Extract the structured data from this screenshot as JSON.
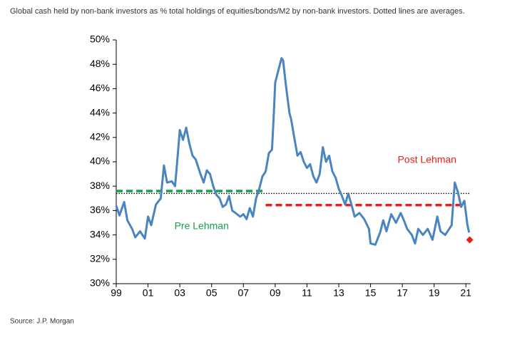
{
  "chart_data": {
    "type": "line",
    "title": "Global cash held by non-bank investors as % total holdings of equities/bonds/M2 by non-bank investors. Dotted lines are averages.",
    "source": "Source: J.P. Morgan",
    "xlim": [
      1999,
      2021.3
    ],
    "xticks": [
      {
        "value": 1999,
        "label": "99"
      },
      {
        "value": 2001,
        "label": "01"
      },
      {
        "value": 2003,
        "label": "03"
      },
      {
        "value": 2005,
        "label": "05"
      },
      {
        "value": 2007,
        "label": "07"
      },
      {
        "value": 2009,
        "label": "09"
      },
      {
        "value": 2011,
        "label": "11"
      },
      {
        "value": 2013,
        "label": "13"
      },
      {
        "value": 2015,
        "label": "15"
      },
      {
        "value": 2017,
        "label": "17"
      },
      {
        "value": 2019,
        "label": "19"
      },
      {
        "value": 2021,
        "label": "21"
      }
    ],
    "ylim": [
      30,
      50
    ],
    "yticks": [
      {
        "value": 30,
        "label": "30%"
      },
      {
        "value": 32,
        "label": "32%"
      },
      {
        "value": 34,
        "label": "34%"
      },
      {
        "value": 36,
        "label": "36%"
      },
      {
        "value": 38,
        "label": "38%"
      },
      {
        "value": 40,
        "label": "40%"
      },
      {
        "value": 42,
        "label": "42%"
      },
      {
        "value": 44,
        "label": "44%"
      },
      {
        "value": 46,
        "label": "46%"
      },
      {
        "value": 48,
        "label": "48%"
      },
      {
        "value": 50,
        "label": "50%"
      }
    ],
    "grid": false,
    "series": [
      {
        "color": "#4a85c0",
        "x": [
          1999.0,
          1999.2,
          1999.5,
          1999.7,
          2000.0,
          2000.2,
          2000.5,
          2000.8,
          2001.0,
          2001.2,
          2001.5,
          2001.8,
          2002.0,
          2002.2,
          2002.5,
          2002.7,
          2002.9,
          2003.0,
          2003.2,
          2003.4,
          2003.6,
          2003.8,
          2004.0,
          2004.3,
          2004.5,
          2004.7,
          2004.9,
          2005.1,
          2005.3,
          2005.5,
          2005.7,
          2005.9,
          2006.1,
          2006.3,
          2006.5,
          2006.8,
          2007.0,
          2007.2,
          2007.4,
          2007.6,
          2007.8,
          2008.0,
          2008.2,
          2008.4,
          2008.6,
          2008.8,
          2008.9,
          2009.0,
          2009.2,
          2009.4,
          2009.5,
          2009.7,
          2009.9,
          2010.0,
          2010.2,
          2010.4,
          2010.6,
          2010.8,
          2011.0,
          2011.2,
          2011.4,
          2011.6,
          2011.8,
          2012.0,
          2012.2,
          2012.4,
          2012.6,
          2012.8,
          2013.0,
          2013.2,
          2013.4,
          2013.6,
          2013.8,
          2014.0,
          2014.3,
          2014.6,
          2014.9,
          2015.0,
          2015.3,
          2015.6,
          2015.8,
          2016.0,
          2016.3,
          2016.6,
          2016.9,
          2017.1,
          2017.3,
          2017.6,
          2017.8,
          2018.0,
          2018.3,
          2018.6,
          2018.9,
          2019.2,
          2019.4,
          2019.7,
          2019.9,
          2020.1,
          2020.3,
          2020.5,
          2020.7,
          2020.9,
          2021.0,
          2021.1,
          2021.2
        ],
        "values": [
          36.4,
          35.6,
          36.7,
          35.2,
          34.5,
          33.8,
          34.3,
          33.7,
          35.5,
          34.8,
          36.5,
          37.0,
          39.7,
          38.3,
          38.4,
          38.0,
          41.0,
          42.6,
          41.8,
          42.8,
          41.5,
          40.5,
          40.2,
          39.0,
          38.3,
          39.3,
          39.0,
          38.0,
          37.3,
          37.0,
          36.3,
          36.5,
          37.2,
          36.0,
          35.8,
          35.5,
          35.7,
          35.3,
          36.2,
          35.5,
          37.0,
          37.8,
          38.8,
          39.2,
          40.7,
          41.0,
          43.5,
          46.5,
          47.5,
          48.5,
          48.3,
          46.0,
          44.0,
          43.5,
          42.0,
          40.5,
          40.8,
          40.0,
          39.5,
          39.8,
          38.8,
          38.3,
          39.0,
          41.2,
          40.0,
          40.5,
          39.2,
          38.7,
          37.8,
          37.2,
          36.5,
          37.4,
          36.5,
          35.5,
          35.8,
          35.3,
          34.5,
          33.3,
          33.2,
          34.2,
          35.2,
          34.3,
          35.7,
          35.0,
          35.8,
          35.2,
          34.5,
          34.0,
          33.3,
          34.5,
          34.0,
          34.5,
          33.6,
          35.5,
          34.3,
          34.0,
          34.4,
          34.8,
          38.3,
          37.5,
          36.3,
          36.8,
          35.8,
          34.8,
          34.2
        ]
      }
    ],
    "last_point": {
      "x": 2021.24,
      "value": 33.6,
      "color": "#e8201a"
    },
    "reference_lines": [
      {
        "value": 37.4,
        "xrange": [
          1999,
          2021.3
        ],
        "color": "#000000",
        "style": "dotted"
      },
      {
        "label": "Pre Lehman",
        "value": 37.6,
        "xrange": [
          1999,
          2008.4
        ],
        "color": "#1a9e4a",
        "style": "dashed"
      },
      {
        "label": "Post Lehman",
        "value": 36.45,
        "xrange": [
          2008.4,
          2020.8
        ],
        "color": "#e8201a",
        "style": "dashed"
      }
    ]
  }
}
